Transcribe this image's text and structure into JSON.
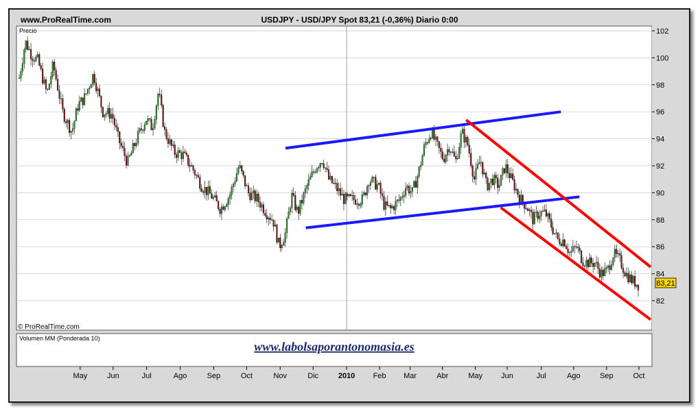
{
  "header": {
    "site": "www.ProRealTime.com",
    "title": "USDJPY - USD/JPY Spot    83,21 (-0,36%)    Diario  0:00"
  },
  "price_panel": {
    "label": "Precio",
    "copyright": "© ProRealTime.com",
    "last_price_tag": "83,21"
  },
  "volume_panel": {
    "label": "Volumen MM (Ponderada 10)",
    "watermark": "www.labolsaporantonomasia.es"
  },
  "colors": {
    "background": "#ffffff",
    "frame": "#d9d9d9",
    "grid": "#c8c8c8",
    "candle_up": "#2e8b2e",
    "candle_down": "#7a1a1a",
    "channel_blue": "#1a1aff",
    "channel_red": "#ff0000",
    "price_tag_bg": "#ffd700",
    "watermark": "#1a2a6b"
  },
  "chart_data": {
    "type": "line",
    "series_style": "candlestick-daily",
    "symbol": "USDJPY",
    "ylim": [
      80,
      102
    ],
    "yticks": [
      102,
      100,
      98,
      96,
      94,
      92,
      90,
      88,
      86,
      84,
      82
    ],
    "grid": true,
    "xticks": [
      {
        "label": "May",
        "t": 0.05
      },
      {
        "label": "Jun",
        "t": 0.106
      },
      {
        "label": "Jul",
        "t": 0.163
      },
      {
        "label": "Ago",
        "t": 0.22
      },
      {
        "label": "Sep",
        "t": 0.277
      },
      {
        "label": "Oct",
        "t": 0.333
      },
      {
        "label": "Nov",
        "t": 0.39
      },
      {
        "label": "Dic",
        "t": 0.446
      },
      {
        "label": "2010",
        "t": 0.503
      },
      {
        "label": "Feb",
        "t": 0.559
      },
      {
        "label": "Mar",
        "t": 0.611
      },
      {
        "label": "Abr",
        "t": 0.666
      },
      {
        "label": "May",
        "t": 0.722
      },
      {
        "label": "Jun",
        "t": 0.776
      },
      {
        "label": "Jul",
        "t": 0.834
      },
      {
        "label": "Ago",
        "t": 0.889
      },
      {
        "label": "Sep",
        "t": 0.945
      },
      {
        "label": "Oct",
        "t": 1.0
      }
    ],
    "price_path": [
      [
        0.0,
        98.5
      ],
      [
        0.01,
        101.2
      ],
      [
        0.02,
        100.2
      ],
      [
        0.03,
        99.8
      ],
      [
        0.045,
        97.3
      ],
      [
        0.055,
        99.5
      ],
      [
        0.07,
        96.0
      ],
      [
        0.085,
        94.5
      ],
      [
        0.095,
        96.5
      ],
      [
        0.105,
        97.0
      ],
      [
        0.12,
        98.8
      ],
      [
        0.135,
        96.0
      ],
      [
        0.15,
        95.8
      ],
      [
        0.16,
        94.0
      ],
      [
        0.175,
        92.2
      ],
      [
        0.19,
        94.0
      ],
      [
        0.205,
        95.5
      ],
      [
        0.215,
        94.8
      ],
      [
        0.225,
        97.5
      ],
      [
        0.235,
        94.5
      ],
      [
        0.25,
        93.0
      ],
      [
        0.265,
        92.8
      ],
      [
        0.28,
        91.8
      ],
      [
        0.295,
        90.5
      ],
      [
        0.31,
        89.8
      ],
      [
        0.325,
        88.8
      ],
      [
        0.34,
        89.8
      ],
      [
        0.355,
        92.0
      ],
      [
        0.37,
        90.0
      ],
      [
        0.385,
        89.5
      ],
      [
        0.4,
        88.5
      ],
      [
        0.41,
        88.0
      ],
      [
        0.42,
        86.0
      ],
      [
        0.43,
        87.0
      ],
      [
        0.44,
        89.8
      ],
      [
        0.45,
        88.5
      ],
      [
        0.465,
        90.5
      ],
      [
        0.48,
        92.0
      ],
      [
        0.49,
        92.5
      ],
      [
        0.5,
        91.0
      ],
      [
        0.51,
        90.5
      ],
      [
        0.525,
        89.5
      ],
      [
        0.54,
        89.5
      ],
      [
        0.555,
        89.5
      ],
      [
        0.565,
        91.0
      ],
      [
        0.58,
        90.5
      ],
      [
        0.59,
        89.0
      ],
      [
        0.6,
        88.8
      ],
      [
        0.615,
        89.5
      ],
      [
        0.625,
        90.5
      ],
      [
        0.635,
        90.0
      ],
      [
        0.645,
        91.5
      ],
      [
        0.655,
        93.5
      ],
      [
        0.665,
        94.5
      ],
      [
        0.675,
        93.5
      ],
      [
        0.685,
        92.5
      ],
      [
        0.695,
        93.5
      ],
      [
        0.705,
        92.3
      ],
      [
        0.715,
        94.5
      ],
      [
        0.725,
        93.5
      ],
      [
        0.735,
        91.0
      ],
      [
        0.745,
        92.5
      ],
      [
        0.755,
        90.5
      ],
      [
        0.765,
        91.0
      ],
      [
        0.775,
        90.5
      ],
      [
        0.785,
        92.0
      ],
      [
        0.795,
        91.0
      ],
      [
        0.81,
        89.5
      ],
      [
        0.82,
        89.0
      ],
      [
        0.83,
        88.0
      ],
      [
        0.84,
        88.5
      ],
      [
        0.85,
        88.5
      ],
      [
        0.86,
        87.5
      ],
      [
        0.87,
        86.5
      ],
      [
        0.88,
        86.5
      ],
      [
        0.89,
        85.5
      ],
      [
        0.9,
        86.0
      ],
      [
        0.91,
        85.0
      ],
      [
        0.92,
        84.8
      ],
      [
        0.93,
        84.8
      ],
      [
        0.94,
        84.0
      ],
      [
        0.95,
        84.2
      ],
      [
        0.96,
        85.5
      ],
      [
        0.97,
        85.0
      ],
      [
        0.98,
        84.0
      ],
      [
        0.99,
        83.5
      ],
      [
        1.0,
        83.2
      ]
    ],
    "trendlines": [
      {
        "color": "blue",
        "from": [
          0.43,
          93.3
        ],
        "to": [
          0.875,
          96.0
        ]
      },
      {
        "color": "blue",
        "from": [
          0.463,
          87.4
        ],
        "to": [
          0.905,
          89.7
        ]
      },
      {
        "color": "red",
        "from": [
          0.722,
          95.4
        ],
        "to": [
          1.02,
          84.5
        ]
      },
      {
        "color": "red",
        "from": [
          0.778,
          88.9
        ],
        "to": [
          1.02,
          80.6
        ]
      }
    ]
  }
}
